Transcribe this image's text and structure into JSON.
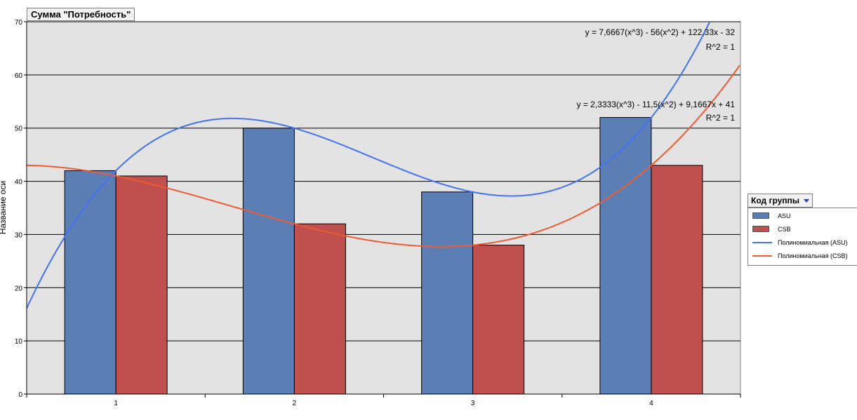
{
  "pivot_field": "Сумма \"Потребность\"",
  "legend": {
    "title": "Код группы",
    "items": [
      {
        "label": "ASU",
        "kind": "bar",
        "color": "#5b7fb5"
      },
      {
        "label": "CSB",
        "kind": "bar",
        "color": "#c0504d"
      },
      {
        "label": "Полиномиальная (ASU)",
        "kind": "line",
        "color": "#4472f0"
      },
      {
        "label": "Полиномиальная (CSB)",
        "kind": "line",
        "color": "#f05a32"
      }
    ]
  },
  "chart_data": {
    "type": "bar",
    "categories": [
      "1",
      "2",
      "3",
      "4"
    ],
    "series": [
      {
        "name": "ASU",
        "values": [
          42,
          50,
          38,
          52
        ],
        "color": "#5b7fb5"
      },
      {
        "name": "CSB",
        "values": [
          41,
          32,
          28,
          43
        ],
        "color": "#c0504d"
      }
    ],
    "trendlines": [
      {
        "name": "Полиномиальная (ASU)",
        "coefficients": [
          7.6667,
          -56,
          122.33,
          -32
        ],
        "equation": "y = 7,6667(x^3) - 56(x^2) + 122,33x - 32",
        "r2": "R^2 = 1",
        "color": "#4472f0"
      },
      {
        "name": "Полиномиальная (CSB)",
        "coefficients": [
          2.3333,
          -11.5,
          9.1667,
          41
        ],
        "equation": "y = 2,3333(x^3) - 11,5(x^2) + 9,1667x + 41",
        "r2": "R^2 = 1",
        "color": "#f05a32"
      }
    ],
    "yticks": [
      "0",
      "10",
      "20",
      "30",
      "40",
      "50",
      "60",
      "70"
    ],
    "ylim": [
      0,
      70
    ],
    "ylabel": "Название оси",
    "grid": true,
    "plot_background": "#e3e3e3"
  }
}
